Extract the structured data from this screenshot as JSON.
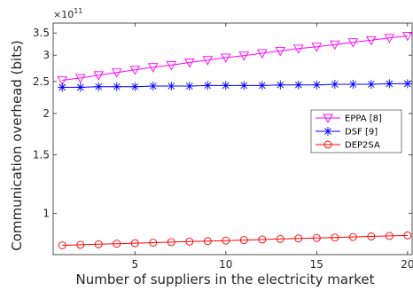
{
  "chart_data": {
    "type": "line",
    "xlabel": "Number of suppliers in the electricity market",
    "ylabel": "Communication overhead (bits)",
    "y_exponent": {
      "base": "×10",
      "power": "11"
    },
    "y_scale": "log",
    "xlim": [
      0.5,
      20.3
    ],
    "ylim": [
      0.75,
      3.75
    ],
    "x_ticks": [
      5,
      10,
      15,
      20
    ],
    "y_ticks": [
      1,
      1.5,
      2,
      2.5,
      3,
      3.5
    ],
    "grid": false,
    "legend_position": "center-right",
    "x": [
      1,
      2,
      3,
      4,
      5,
      6,
      7,
      8,
      9,
      10,
      11,
      12,
      13,
      14,
      15,
      16,
      17,
      18,
      19,
      20
    ],
    "series": [
      {
        "name": "EPPA [8]",
        "color": "#ff00ff",
        "marker": "triangle-down",
        "values": [
          2.52,
          2.56,
          2.61,
          2.66,
          2.71,
          2.76,
          2.8,
          2.85,
          2.9,
          2.95,
          2.99,
          3.04,
          3.09,
          3.14,
          3.18,
          3.23,
          3.28,
          3.33,
          3.38,
          3.43
        ]
      },
      {
        "name": "DSF [9]",
        "color": "#0000ff",
        "marker": "star",
        "values": [
          2.4,
          2.4,
          2.41,
          2.41,
          2.41,
          2.42,
          2.42,
          2.42,
          2.43,
          2.43,
          2.43,
          2.43,
          2.44,
          2.44,
          2.44,
          2.45,
          2.45,
          2.45,
          2.46,
          2.46
        ]
      },
      {
        "name": "DEP2SA",
        "color": "#ff0000",
        "marker": "circle",
        "values": [
          0.8,
          0.803,
          0.806,
          0.809,
          0.812,
          0.815,
          0.818,
          0.821,
          0.824,
          0.827,
          0.83,
          0.833,
          0.836,
          0.839,
          0.842,
          0.845,
          0.848,
          0.851,
          0.854,
          0.857
        ]
      }
    ]
  }
}
